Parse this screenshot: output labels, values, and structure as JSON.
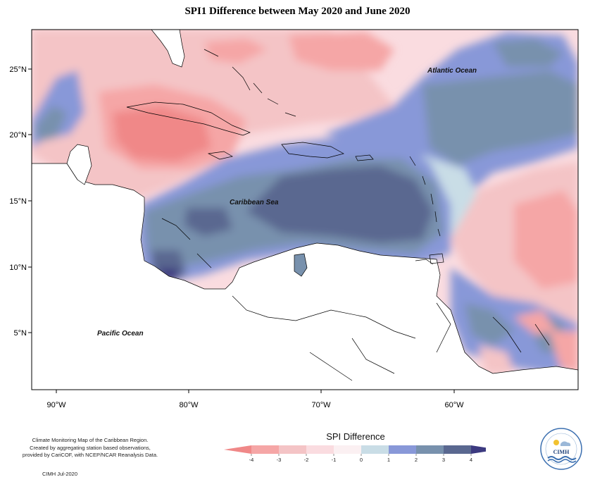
{
  "title": "SPI1 Difference between May 2020 and June 2020",
  "oceans": {
    "atlantic": "Atlantic Ocean",
    "caribbean": "Caribbean Sea",
    "pacific": "Pacific Ocean"
  },
  "axes": {
    "lat_ticks": [
      "25°N",
      "20°N",
      "15°N",
      "10°N",
      "5°N"
    ],
    "lon_ticks": [
      "90°W",
      "80°W",
      "70°W",
      "60°W"
    ]
  },
  "legend": {
    "title": "SPI Difference",
    "ticks": [
      "-4",
      "-3",
      "-2",
      "-1",
      "0",
      "1",
      "2",
      "3",
      "4"
    ],
    "colors": [
      "#f08888",
      "#f5a6a6",
      "#f4c4c6",
      "#fadce0",
      "#fbf0f2",
      "#c9dde6",
      "#8898d8",
      "#7891ad",
      "#5a6890",
      "#3c3a80"
    ]
  },
  "footer": {
    "note_line1": "Climate Monitoring Map of the Caribbean Region.",
    "note_line2": "Created by aggregating station based observations,",
    "note_line3": "provided by CariCOF, with NCEP/NCAR Reanalysis Data.",
    "credit": "CIMH Jul-2020"
  },
  "logo": {
    "text": "CIMH",
    "icon": "cimh-logo-icon"
  }
}
